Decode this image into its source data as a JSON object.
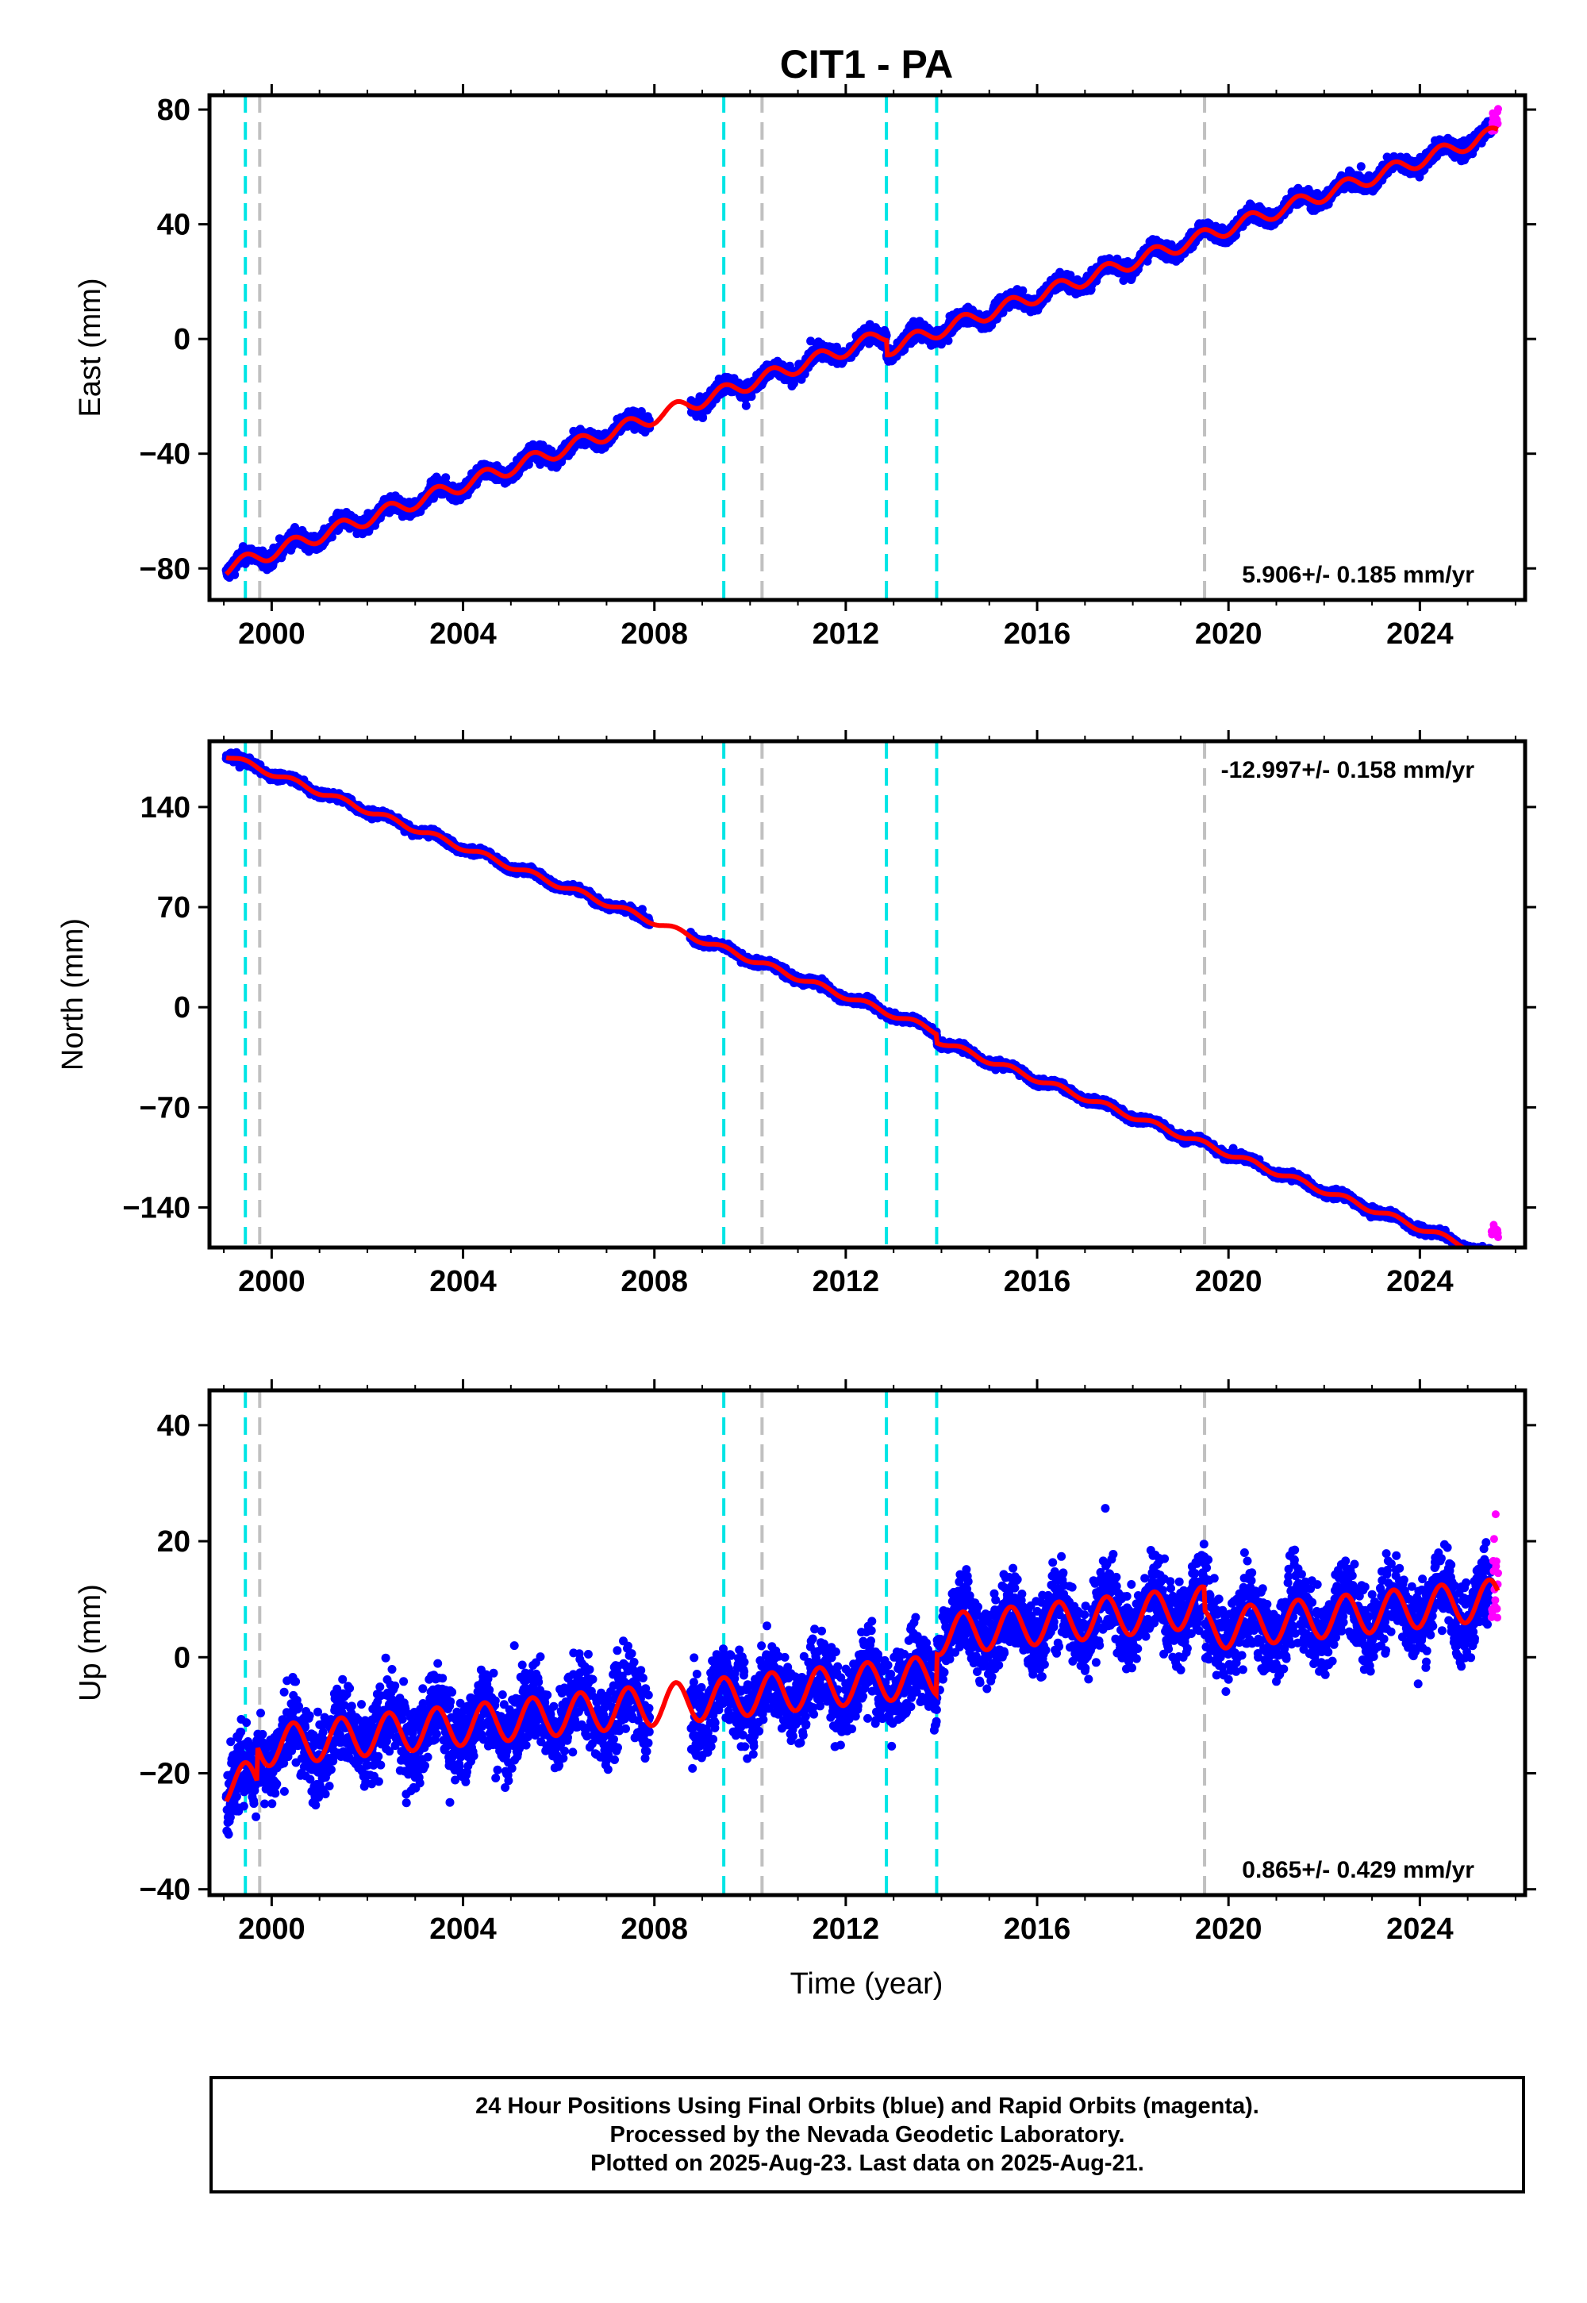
{
  "title": "CIT1 - PA",
  "xlabel": "Time (year)",
  "caption": {
    "line1": "24 Hour Positions Using Final Orbits (blue) and Rapid Orbits (magenta).",
    "line2": "Processed by the Nevada Geodetic Laboratory.",
    "line3": "Plotted on 2025-Aug-23. Last data on 2025-Aug-21."
  },
  "colors": {
    "final_orbits": "#0000ff",
    "rapid_orbits": "#ff00ff",
    "model_fit": "#ff0000",
    "cyan_lines": "#00e5e5",
    "gray_lines": "#c0c0c0"
  },
  "chart_data": [
    {
      "type": "scatter",
      "ylabel": "East (mm)",
      "rate_label": "5.906+/- 0.185 mm/yr",
      "rate_label_position": "bottom-right",
      "xlim": [
        1998.7,
        2026.2
      ],
      "ylim": [
        -91,
        85
      ],
      "x_ticks": [
        2000,
        2004,
        2008,
        2012,
        2016,
        2020,
        2024
      ],
      "y_ticks": [
        -80,
        -40,
        0,
        40,
        80
      ],
      "y_tick_labels": [
        "−80",
        "−40",
        "0",
        "40",
        "80"
      ],
      "series": [
        {
          "name": "Final Orbits",
          "color": "#0000ff",
          "start": 1999.05,
          "end": 2025.5,
          "start_value": -80,
          "rate": 5.906,
          "seasonal_amplitude": 2.5,
          "noise": 2.0,
          "gaps": [
            [
              2007.9,
              2008.75
            ]
          ],
          "offsets": [
            [
              2012.85,
              -5
            ]
          ]
        },
        {
          "name": "Rapid Orbits",
          "color": "#ff00ff",
          "start": 2025.5,
          "end": 2025.64,
          "start_value": 76,
          "rate": 5.906,
          "noise": 2.5
        }
      ],
      "fit": {
        "color": "#ff0000",
        "start": 1999.05,
        "end": 2025.64
      }
    },
    {
      "type": "scatter",
      "ylabel": "North (mm)",
      "rate_label": "-12.997+/- 0.158 mm/yr",
      "rate_label_position": "top-right",
      "xlim": [
        1998.7,
        2026.2
      ],
      "ylim": [
        -168,
        186
      ],
      "x_ticks": [
        2000,
        2004,
        2008,
        2012,
        2016,
        2020,
        2024
      ],
      "y_ticks": [
        -140,
        -70,
        0,
        70,
        140
      ],
      "y_tick_labels": [
        "−140",
        "−70",
        "0",
        "70",
        "140"
      ],
      "series": [
        {
          "name": "Final Orbits",
          "color": "#0000ff",
          "start": 1999.05,
          "end": 2025.5,
          "start_value": 176,
          "rate": -12.997,
          "seasonal_amplitude": 2.0,
          "noise": 2.0,
          "gaps": [
            [
              2007.9,
              2008.75
            ]
          ],
          "offsets": [
            [
              2013.9,
              -6
            ]
          ]
        },
        {
          "name": "Rapid Orbits",
          "color": "#ff00ff",
          "start": 2025.5,
          "end": 2025.64,
          "start_value": -156,
          "rate": -12.997,
          "noise": 3
        }
      ],
      "fit": {
        "color": "#ff0000",
        "start": 1999.05,
        "end": 2025.64
      }
    },
    {
      "type": "scatter",
      "ylabel": "Up (mm)",
      "rate_label": "0.865+/- 0.429 mm/yr",
      "rate_label_position": "bottom-right",
      "xlim": [
        1998.7,
        2026.2
      ],
      "ylim": [
        -41,
        46
      ],
      "x_ticks": [
        2000,
        2004,
        2008,
        2012,
        2016,
        2020,
        2024
      ],
      "y_ticks": [
        -40,
        -20,
        0,
        20,
        40
      ],
      "y_tick_labels": [
        "−40",
        "−20",
        "0",
        "20",
        "40"
      ],
      "series": [
        {
          "name": "Final Orbits",
          "color": "#0000ff",
          "start": 1999.05,
          "end": 2025.5,
          "start_value": -22,
          "rate": 0.865,
          "seasonal_amplitude": 3.5,
          "noise": 5.0,
          "gaps": [
            [
              2007.9,
              2008.75
            ]
          ],
          "offsets": [
            [
              1999.7,
              6
            ],
            [
              2013.9,
              7
            ],
            [
              2019.5,
              -4
            ]
          ]
        },
        {
          "name": "Rapid Orbits",
          "color": "#ff00ff",
          "start": 2025.5,
          "end": 2025.64,
          "start_value": 12,
          "rate": 0.865,
          "noise": 9
        }
      ],
      "fit": {
        "color": "#ff0000",
        "start": 1999.05,
        "end": 2025.64
      }
    }
  ],
  "vertical_lines": [
    {
      "x": 1999.45,
      "style": "cyan-dashed"
    },
    {
      "x": 1999.75,
      "style": "gray-dashed"
    },
    {
      "x": 2009.45,
      "style": "cyan-dashed"
    },
    {
      "x": 2010.25,
      "style": "gray-dashed"
    },
    {
      "x": 2012.85,
      "style": "cyan-dashed"
    },
    {
      "x": 2013.9,
      "style": "cyan-dashed"
    },
    {
      "x": 2019.5,
      "style": "gray-dashed"
    }
  ]
}
